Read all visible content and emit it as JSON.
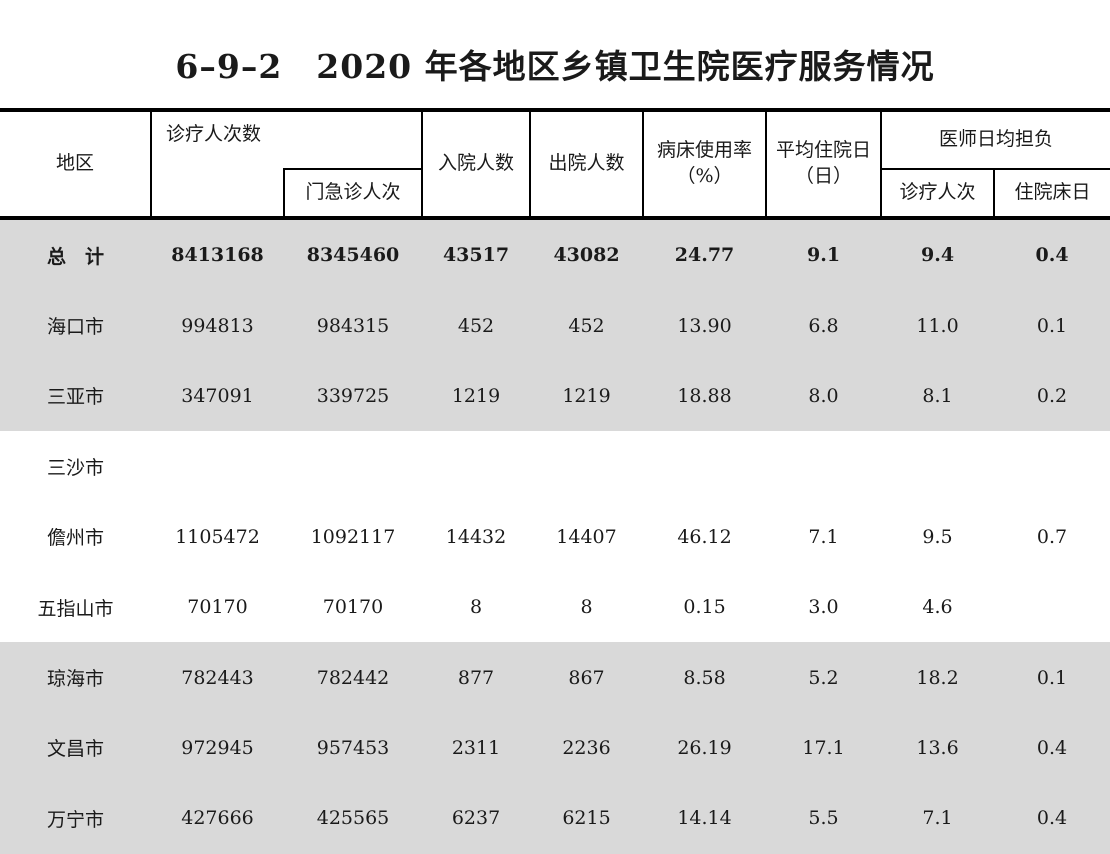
{
  "title": "6–9–2　2020 年各地区乡镇卫生院医疗服务情况",
  "headers": {
    "region": "地区",
    "visits": "诊疗人次数",
    "emergency_visits": "门急诊人次",
    "admissions": "入院人数",
    "discharges": "出院人数",
    "bed_usage_line1": "病床使用率",
    "bed_usage_line2": "（%）",
    "avg_stay_line1": "平均住院日",
    "avg_stay_line2": "（日）",
    "physician_load": "医师日均担负",
    "physician_visits": "诊疗人次",
    "physician_bed_days": "住院床日"
  },
  "rows": [
    {
      "region": "总　计",
      "visits": "8413168",
      "emergency": "8345460",
      "admissions": "43517",
      "discharges": "43082",
      "bed_rate": "24.77",
      "avg_stay": "9.1",
      "doc_visits": "9.4",
      "doc_bed_days": "0.4"
    },
    {
      "region": "海口市",
      "visits": "994813",
      "emergency": "984315",
      "admissions": "452",
      "discharges": "452",
      "bed_rate": "13.90",
      "avg_stay": "6.8",
      "doc_visits": "11.0",
      "doc_bed_days": "0.1"
    },
    {
      "region": "三亚市",
      "visits": "347091",
      "emergency": "339725",
      "admissions": "1219",
      "discharges": "1219",
      "bed_rate": "18.88",
      "avg_stay": "8.0",
      "doc_visits": "8.1",
      "doc_bed_days": "0.2"
    },
    {
      "region": "三沙市",
      "visits": "",
      "emergency": "",
      "admissions": "",
      "discharges": "",
      "bed_rate": "",
      "avg_stay": "",
      "doc_visits": "",
      "doc_bed_days": ""
    },
    {
      "region": "儋州市",
      "visits": "1105472",
      "emergency": "1092117",
      "admissions": "14432",
      "discharges": "14407",
      "bed_rate": "46.12",
      "avg_stay": "7.1",
      "doc_visits": "9.5",
      "doc_bed_days": "0.7"
    },
    {
      "region": "五指山市",
      "visits": "70170",
      "emergency": "70170",
      "admissions": "8",
      "discharges": "8",
      "bed_rate": "0.15",
      "avg_stay": "3.0",
      "doc_visits": "4.6",
      "doc_bed_days": ""
    },
    {
      "region": "琼海市",
      "visits": "782443",
      "emergency": "782442",
      "admissions": "877",
      "discharges": "867",
      "bed_rate": "8.58",
      "avg_stay": "5.2",
      "doc_visits": "18.2",
      "doc_bed_days": "0.1"
    },
    {
      "region": "文昌市",
      "visits": "972945",
      "emergency": "957453",
      "admissions": "2311",
      "discharges": "2236",
      "bed_rate": "26.19",
      "avg_stay": "17.1",
      "doc_visits": "13.6",
      "doc_bed_days": "0.4"
    },
    {
      "region": "万宁市",
      "visits": "427666",
      "emergency": "425565",
      "admissions": "6237",
      "discharges": "6215",
      "bed_rate": "14.14",
      "avg_stay": "5.5",
      "doc_visits": "7.1",
      "doc_bed_days": "0.4"
    }
  ],
  "shaded_rows": [
    0,
    1,
    2,
    6,
    7,
    8
  ],
  "colors": {
    "shade": "#d9d9d9",
    "rule": "#000000",
    "text": "#1a1a1a"
  }
}
